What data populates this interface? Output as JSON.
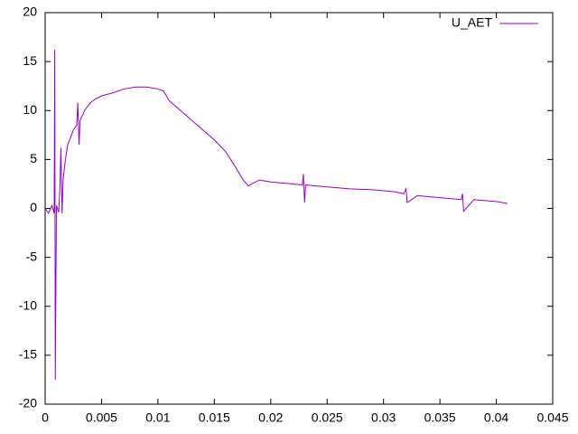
{
  "chart_data": {
    "type": "line",
    "x": [
      0,
      0.0003,
      0.0006,
      0.0008,
      0.00085,
      0.0009,
      0.001,
      0.0012,
      0.0013,
      0.0014,
      0.0015,
      0.0016,
      0.0018,
      0.002,
      0.0025,
      0.0028,
      0.0029,
      0.003,
      0.0031,
      0.0035,
      0.004,
      0.0045,
      0.005,
      0.006,
      0.007,
      0.008,
      0.009,
      0.01,
      0.0105,
      0.011,
      0.012,
      0.013,
      0.014,
      0.015,
      0.016,
      0.017,
      0.0175,
      0.018,
      0.0185,
      0.019,
      0.02,
      0.021,
      0.022,
      0.0228,
      0.0229,
      0.023,
      0.0231,
      0.024,
      0.025,
      0.027,
      0.029,
      0.031,
      0.0318,
      0.032,
      0.0321,
      0.033,
      0.035,
      0.0369,
      0.037,
      0.0371,
      0.038,
      0.039,
      0.04,
      0.041
    ],
    "series": [
      {
        "name": "U_AET",
        "color": "#9400d3",
        "values": [
          0,
          -0.5,
          0.3,
          -0.5,
          16.2,
          -17.5,
          0.3,
          -0.4,
          2,
          6.2,
          -0.5,
          3,
          5,
          6.5,
          8,
          8.5,
          10.8,
          6.5,
          9,
          10,
          10.8,
          11.2,
          11.5,
          11.8,
          12.2,
          12.4,
          12.4,
          12.2,
          12,
          11,
          10,
          9,
          8,
          7,
          5.8,
          4,
          3,
          2.3,
          2.6,
          2.9,
          2.7,
          2.6,
          2.5,
          2.4,
          3.5,
          0.6,
          2.4,
          2.3,
          2.2,
          2,
          1.9,
          1.7,
          1.5,
          2,
          0.6,
          1.3,
          1.1,
          0.9,
          1.5,
          -0.3,
          0.9,
          0.8,
          0.7,
          0.5
        ]
      }
    ],
    "xlim": [
      0,
      0.045
    ],
    "xticks": [
      0,
      0.005,
      0.01,
      0.015,
      0.02,
      0.025,
      0.03,
      0.035,
      0.04,
      0.045
    ],
    "ylim": [
      -20,
      20
    ],
    "yticks": [
      -20,
      -15,
      -10,
      -5,
      0,
      5,
      10,
      15,
      20
    ],
    "legend": "top-right"
  }
}
